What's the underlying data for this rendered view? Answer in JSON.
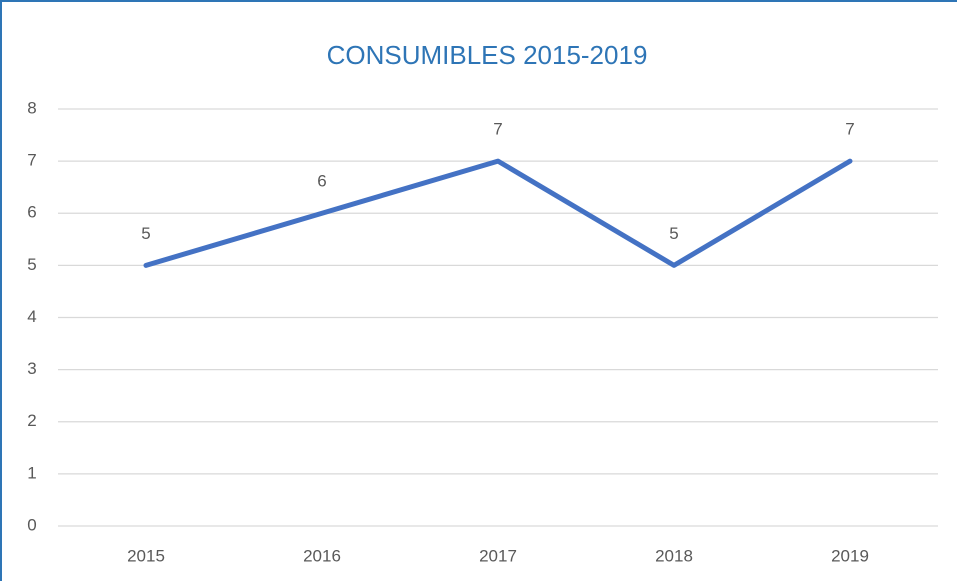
{
  "chart_data": {
    "type": "line",
    "title": "CONSUMIBLES 2015-2019",
    "categories": [
      "2015",
      "2016",
      "2017",
      "2018",
      "2019"
    ],
    "values": [
      5,
      6,
      7,
      5,
      7
    ],
    "color": "#4472c4",
    "title_color": "#2e75b6",
    "ylim": [
      0,
      8
    ],
    "yticks": [
      0,
      1,
      2,
      3,
      4,
      5,
      6,
      7,
      8
    ],
    "grid": true,
    "data_labels": true
  }
}
